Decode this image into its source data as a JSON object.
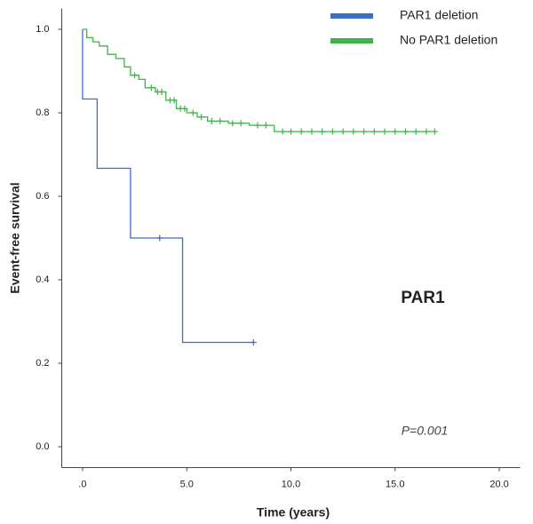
{
  "chart_data": {
    "type": "step",
    "xlabel": "Time (years)",
    "ylabel": "Event-free survival",
    "xlim": [
      -1,
      21
    ],
    "ylim": [
      -0.05,
      1.05
    ],
    "xticks": [
      {
        "value": 0,
        "label": ".0"
      },
      {
        "value": 5,
        "label": "5.0"
      },
      {
        "value": 10,
        "label": "10.0"
      },
      {
        "value": 15,
        "label": "15.0"
      },
      {
        "value": 20,
        "label": "20.0"
      }
    ],
    "yticks": [
      {
        "value": 0,
        "label": "0.0"
      },
      {
        "value": 0.2,
        "label": "0.2"
      },
      {
        "value": 0.4,
        "label": "0.4"
      },
      {
        "value": 0.6,
        "label": "0.6"
      },
      {
        "value": 0.8,
        "label": "0.8"
      },
      {
        "value": 1,
        "label": "1.0"
      }
    ],
    "legend": "top-right",
    "annotations": [
      "PAR1",
      "P=0.001"
    ],
    "series": [
      {
        "name": "PAR1 deletion",
        "color": "#3a6fc4",
        "x": [
          0,
          0,
          0.7,
          2.3,
          4.8,
          8.2
        ],
        "values": [
          1.0,
          0.833,
          0.667,
          0.5,
          0.25,
          0.25
        ],
        "censored_x": [
          3.7,
          8.2
        ],
        "censored_values": [
          0.5,
          0.25
        ]
      },
      {
        "name": "No PAR1 deletion",
        "color": "#3cb54a",
        "x": [
          0,
          0.2,
          0.5,
          0.8,
          1.2,
          1.6,
          2.0,
          2.3,
          2.7,
          3.0,
          3.5,
          4.0,
          4.5,
          5.0,
          5.5,
          6.0,
          7.0,
          8.0,
          9.2,
          16.9
        ],
        "values": [
          1.0,
          0.98,
          0.97,
          0.96,
          0.94,
          0.93,
          0.91,
          0.89,
          0.88,
          0.86,
          0.85,
          0.83,
          0.81,
          0.8,
          0.79,
          0.78,
          0.775,
          0.77,
          0.755,
          0.755
        ],
        "censored_x": [
          2.5,
          3.3,
          3.6,
          3.8,
          4.2,
          4.4,
          4.7,
          4.9,
          5.3,
          5.7,
          6.2,
          6.6,
          7.2,
          7.6,
          8.4,
          8.8,
          9.6,
          10.0,
          10.5,
          11.0,
          11.5,
          12.0,
          12.5,
          13.0,
          13.5,
          14.0,
          14.5,
          15.0,
          15.5,
          16.0,
          16.5,
          16.9
        ],
        "censored_values": [
          0.89,
          0.86,
          0.85,
          0.85,
          0.83,
          0.83,
          0.81,
          0.81,
          0.8,
          0.79,
          0.78,
          0.78,
          0.775,
          0.775,
          0.77,
          0.77,
          0.755,
          0.755,
          0.755,
          0.755,
          0.755,
          0.755,
          0.755,
          0.755,
          0.755,
          0.755,
          0.755,
          0.755,
          0.755,
          0.755,
          0.755,
          0.755
        ]
      }
    ]
  }
}
